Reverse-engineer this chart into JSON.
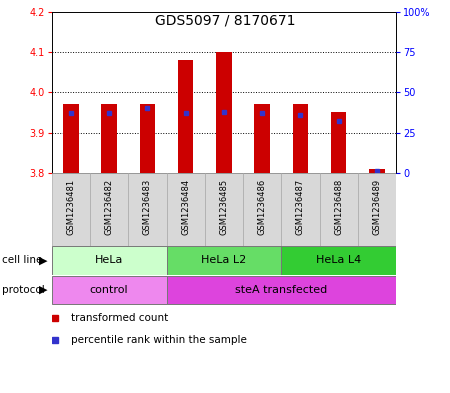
{
  "title": "GDS5097 / 8170671",
  "samples": [
    "GSM1236481",
    "GSM1236482",
    "GSM1236483",
    "GSM1236484",
    "GSM1236485",
    "GSM1236486",
    "GSM1236487",
    "GSM1236488",
    "GSM1236489"
  ],
  "transformed_counts": [
    3.97,
    3.97,
    3.97,
    4.08,
    4.1,
    3.97,
    3.97,
    3.95,
    3.81
  ],
  "percentile_ranks": [
    37,
    37,
    40,
    37,
    38,
    37,
    36,
    32,
    1
  ],
  "ylim_left": [
    3.8,
    4.2
  ],
  "ylim_right": [
    0,
    100
  ],
  "yticks_left": [
    3.8,
    3.9,
    4.0,
    4.1,
    4.2
  ],
  "yticks_right": [
    0,
    25,
    50,
    75,
    100
  ],
  "yticklabels_right": [
    "0",
    "25",
    "50",
    "75",
    "100%"
  ],
  "bar_color": "#cc0000",
  "dot_color": "#3333cc",
  "bar_bottom": 3.8,
  "bar_width": 0.4,
  "cell_line_groups": [
    {
      "label": "HeLa",
      "start": 0,
      "end": 2,
      "color": "#ccffcc"
    },
    {
      "label": "HeLa L2",
      "start": 3,
      "end": 5,
      "color": "#66dd66"
    },
    {
      "label": "HeLa L4",
      "start": 6,
      "end": 8,
      "color": "#33cc33"
    }
  ],
  "protocol_groups": [
    {
      "label": "control",
      "start": 0,
      "end": 2,
      "color": "#ee88ee"
    },
    {
      "label": "steA transfected",
      "start": 3,
      "end": 8,
      "color": "#dd44dd"
    }
  ],
  "legend_items": [
    {
      "label": "transformed count",
      "color": "#cc0000"
    },
    {
      "label": "percentile rank within the sample",
      "color": "#3333cc"
    }
  ],
  "sample_bg_color": "#d8d8d8",
  "sample_border_color": "#aaaaaa",
  "plot_bg": "#ffffff",
  "title_fontsize": 10,
  "label_fontsize": 8,
  "tick_fontsize": 7,
  "sample_fontsize": 6
}
